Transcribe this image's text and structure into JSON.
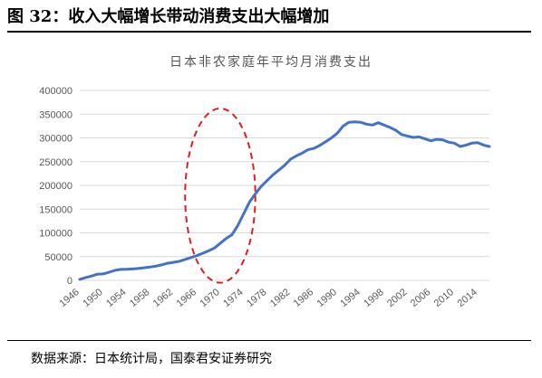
{
  "figure_title": "图 32：收入大幅增长带动消费支出大幅增加",
  "source_note": "数据来源：日本统计局，国泰君安证券研究",
  "colors": {
    "line": "#4472c4",
    "grid": "#d9d9d9",
    "highlight": "#e02020",
    "axis_text": "#595959"
  },
  "chart_data": {
    "type": "line",
    "title": "日本非农家庭年平均月消费支出",
    "xlabel": "",
    "ylabel": "",
    "ylim": [
      0,
      400000
    ],
    "yticks": [
      0,
      50000,
      100000,
      150000,
      200000,
      250000,
      300000,
      350000,
      400000
    ],
    "ytick_labels": [
      "0",
      "50000",
      "100000",
      "150000",
      "200000",
      "250000",
      "300000",
      "350000",
      "400000"
    ],
    "xlim": [
      1946,
      2016
    ],
    "xticks": [
      1946,
      1950,
      1954,
      1958,
      1962,
      1966,
      1970,
      1974,
      1978,
      1982,
      1986,
      1990,
      1994,
      1998,
      2002,
      2006,
      2010,
      2014
    ],
    "grid": true,
    "legend": "none",
    "highlight": {
      "shape": "dashed-ellipse",
      "x_range": [
        1964,
        1976
      ],
      "y_range": [
        -5000,
        362000
      ]
    },
    "series": [
      {
        "x": [
          1946,
          1947,
          1948,
          1949,
          1950,
          1951,
          1952,
          1953,
          1954,
          1955,
          1956,
          1957,
          1958,
          1959,
          1960,
          1961,
          1962,
          1963,
          1964,
          1965,
          1966,
          1967,
          1968,
          1969,
          1970,
          1971,
          1972,
          1973,
          1974,
          1975,
          1976,
          1977,
          1978,
          1979,
          1980,
          1981,
          1982,
          1983,
          1984,
          1985,
          1986,
          1987,
          1988,
          1989,
          1990,
          1991,
          1992,
          1993,
          1994,
          1995,
          1996,
          1997,
          1998,
          1999,
          2000,
          2001,
          2002,
          2003,
          2004,
          2005,
          2006,
          2007,
          2008,
          2009,
          2010,
          2011,
          2012,
          2013,
          2014,
          2015,
          2016
        ],
        "values": [
          2000,
          6000,
          9000,
          13000,
          13500,
          17000,
          21000,
          23000,
          23500,
          24000,
          25000,
          26500,
          28000,
          30000,
          32500,
          36000,
          38000,
          40000,
          44000,
          48000,
          52000,
          57000,
          62000,
          68000,
          78000,
          88000,
          96000,
          115000,
          140000,
          165000,
          182000,
          198000,
          210000,
          222000,
          232000,
          242000,
          255000,
          262000,
          268000,
          275000,
          278000,
          284000,
          292000,
          300000,
          310000,
          325000,
          333000,
          334000,
          333000,
          329000,
          327000,
          332000,
          327000,
          322000,
          316000,
          307000,
          304000,
          301000,
          302000,
          298000,
          294000,
          297000,
          296000,
          291000,
          289000,
          282000,
          285000,
          289000,
          290000,
          285000,
          282000
        ]
      }
    ]
  }
}
